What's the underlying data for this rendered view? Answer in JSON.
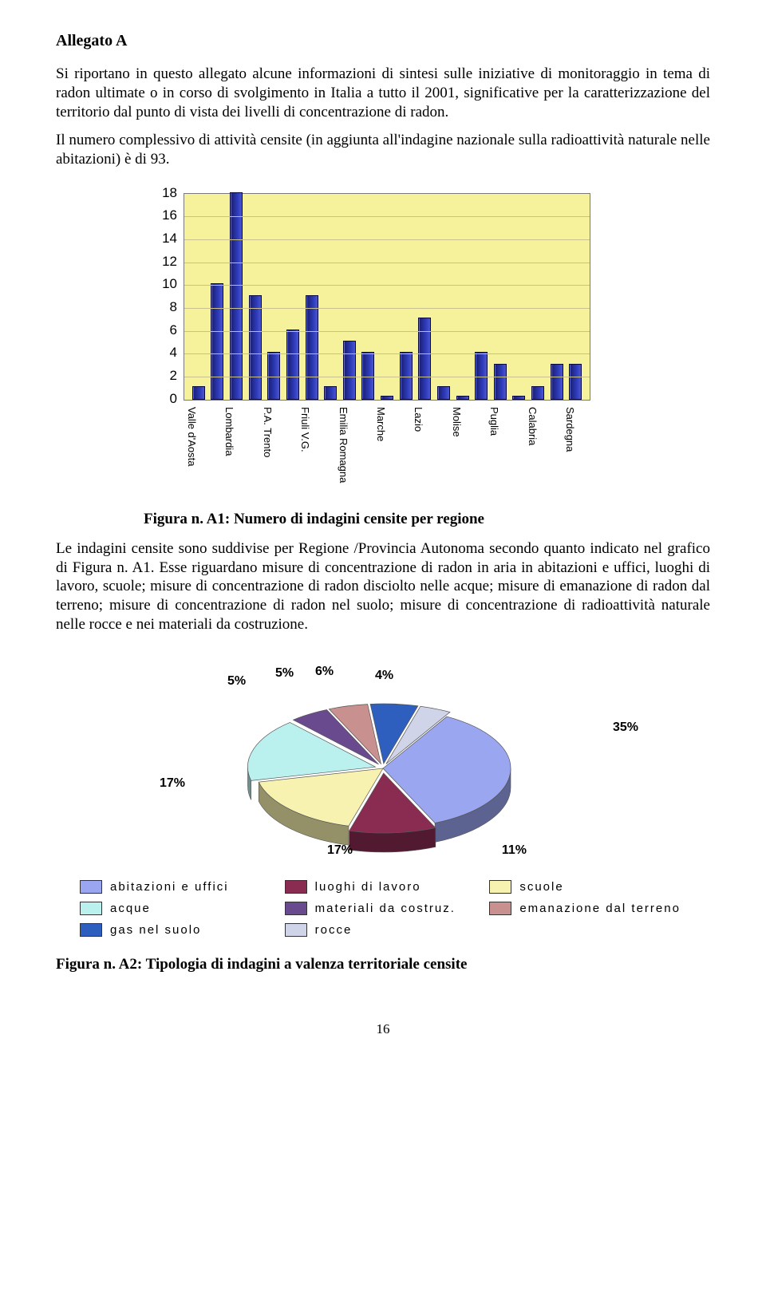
{
  "title": "Allegato A",
  "para1": "Si riportano in questo allegato alcune informazioni di sintesi sulle iniziative di monitoraggio in tema di radon ultimate o in corso di svolgimento in Italia a tutto il 2001, significative per la caratterizzazione del territorio dal punto di vista dei livelli di concentrazione di radon.",
  "para2": "Il numero complessivo di attività censite (in aggiunta all'indagine nazionale sulla radioattività naturale nelle abitazioni) è di 93.",
  "figA1_caption": "Figura n. A1: Numero di indagini censite per regione",
  "para3": "Le indagini censite sono suddivise per Regione /Provincia Autonoma secondo quanto indicato nel grafico di Figura n. A1. Esse riguardano misure di concentrazione di radon in aria in abitazioni e uffici, luoghi di lavoro, scuole; misure di concentrazione di radon disciolto nelle acque; misure di emanazione di radon dal terreno; misure di concentrazione di radon nel suolo; misure di concentrazione di radioattività naturale nelle rocce e nei materiali da costruzione.",
  "figA2_caption": "Figura n. A2: Tipologia di indagini a valenza territoriale censite",
  "page_number": "16",
  "bar_chart": {
    "ymax": 18,
    "ystep": 2,
    "plot_bg": "#f6f19b",
    "bar_color": "#2d3ab8",
    "categories": [
      "Valle d'Aosta",
      "",
      "Lombardia",
      "",
      "P.A. Trento",
      "",
      "Friuli V.G.",
      "",
      "Emilia Romagna",
      "",
      "Marche",
      "",
      "Lazio",
      "",
      "Molise",
      "",
      "Puglia",
      "",
      "Calabria",
      "",
      "Sardegna"
    ],
    "values": [
      1,
      10,
      18,
      9,
      4,
      6,
      9,
      1,
      5,
      4,
      0.2,
      4,
      7,
      1,
      0.2,
      4,
      3,
      0.2,
      1,
      3,
      3
    ]
  },
  "pie_chart": {
    "slices": [
      {
        "label": "abitazioni e uffici",
        "pct": 35,
        "color": "#9aa6f0"
      },
      {
        "label": "luoghi di lavoro",
        "pct": 11,
        "color": "#8a2c52"
      },
      {
        "label": "scuole",
        "pct": 17,
        "color": "#f7f2b0"
      },
      {
        "label": "acque",
        "pct": 17,
        "color": "#baf1ef"
      },
      {
        "label": "materiali da costruz.",
        "pct": 5,
        "color": "#6a4a8e"
      },
      {
        "label": "emanazione dal terreno",
        "pct": 5,
        "color": "#c99090"
      },
      {
        "label": "gas nel suolo",
        "pct": 6,
        "color": "#2e5fbf"
      },
      {
        "label": "rocce",
        "pct": 4,
        "color": "#d0d4e8"
      }
    ],
    "pct_labels": {
      "p35": "35%",
      "p11": "11%",
      "p17a": "17%",
      "p17b": "17%",
      "p5a": "5%",
      "p5b": "5%",
      "p6": "6%",
      "p4": "4%"
    }
  }
}
